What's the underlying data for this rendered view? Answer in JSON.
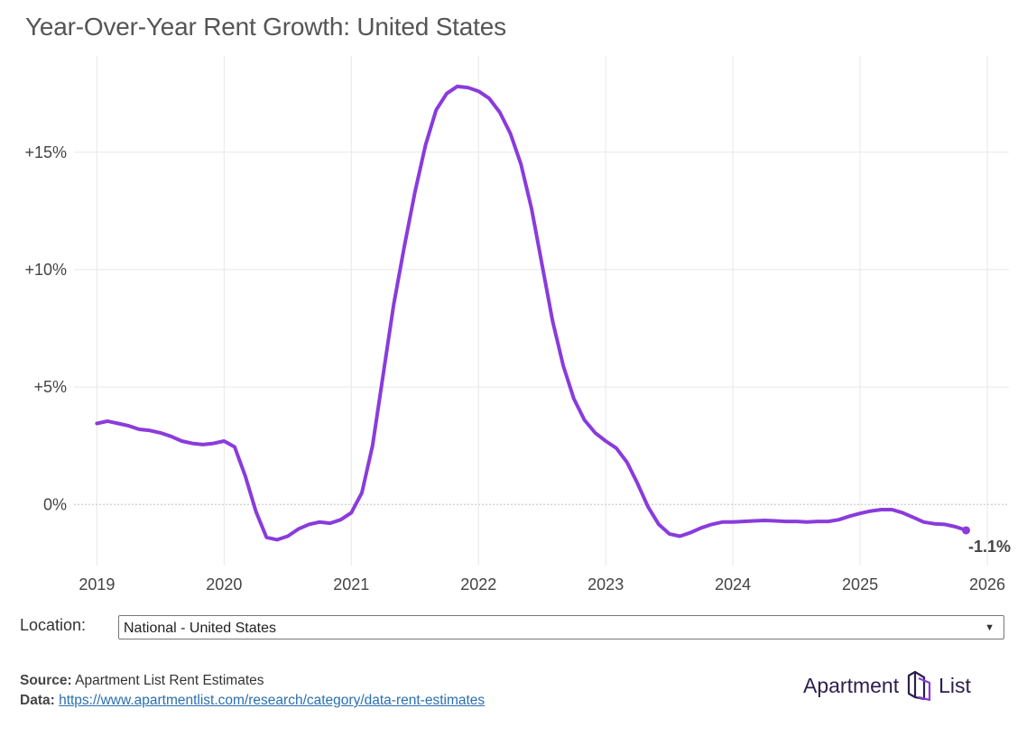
{
  "chart_data": {
    "type": "line",
    "title": "Year-Over-Year Rent Growth: United States",
    "xlabel": "",
    "ylabel": "",
    "x_ticks": [
      "2019",
      "2020",
      "2021",
      "2022",
      "2023",
      "2024",
      "2025",
      "2026"
    ],
    "y_ticks": [
      "0%",
      "+5%",
      "+10%",
      "+15%"
    ],
    "y_tick_values": [
      0,
      5,
      10,
      15
    ],
    "ylim": [
      -2.6,
      19.1
    ],
    "xlim": [
      2018.82,
      2026.17
    ],
    "grid": true,
    "line_color": "#8a3bdc",
    "series": [
      {
        "name": "National - United States",
        "x": [
          2019.0,
          2019.083,
          2019.167,
          2019.25,
          2019.333,
          2019.417,
          2019.5,
          2019.583,
          2019.667,
          2019.75,
          2019.833,
          2019.917,
          2020.0,
          2020.083,
          2020.167,
          2020.25,
          2020.333,
          2020.417,
          2020.5,
          2020.583,
          2020.667,
          2020.75,
          2020.833,
          2020.917,
          2021.0,
          2021.083,
          2021.167,
          2021.25,
          2021.333,
          2021.417,
          2021.5,
          2021.583,
          2021.667,
          2021.75,
          2021.833,
          2021.917,
          2022.0,
          2022.083,
          2022.167,
          2022.25,
          2022.333,
          2022.417,
          2022.5,
          2022.583,
          2022.667,
          2022.75,
          2022.833,
          2022.917,
          2023.0,
          2023.083,
          2023.167,
          2023.25,
          2023.333,
          2023.417,
          2023.5,
          2023.583,
          2023.667,
          2023.75,
          2023.833,
          2023.917,
          2024.0,
          2024.083,
          2024.167,
          2024.25,
          2024.333,
          2024.417,
          2024.5,
          2024.583,
          2024.667,
          2024.75,
          2024.833,
          2024.917,
          2025.0,
          2025.083,
          2025.167,
          2025.25,
          2025.333,
          2025.417,
          2025.5,
          2025.583,
          2025.667,
          2025.75,
          2025.833
        ],
        "values": [
          3.45,
          3.55,
          3.45,
          3.35,
          3.2,
          3.15,
          3.05,
          2.9,
          2.7,
          2.6,
          2.55,
          2.6,
          2.7,
          2.45,
          1.2,
          -0.3,
          -1.4,
          -1.5,
          -1.35,
          -1.05,
          -0.85,
          -0.75,
          -0.8,
          -0.65,
          -0.35,
          0.5,
          2.5,
          5.5,
          8.5,
          11.0,
          13.3,
          15.3,
          16.8,
          17.5,
          17.8,
          17.75,
          17.6,
          17.3,
          16.7,
          15.8,
          14.5,
          12.6,
          10.2,
          7.8,
          5.9,
          4.5,
          3.6,
          3.05,
          2.7,
          2.4,
          1.8,
          0.9,
          -0.1,
          -0.85,
          -1.25,
          -1.35,
          -1.2,
          -1.0,
          -0.85,
          -0.75,
          -0.75,
          -0.72,
          -0.7,
          -0.68,
          -0.7,
          -0.72,
          -0.72,
          -0.75,
          -0.72,
          -0.72,
          -0.65,
          -0.5,
          -0.38,
          -0.28,
          -0.22,
          -0.22,
          -0.35,
          -0.55,
          -0.75,
          -0.82,
          -0.85,
          -0.95,
          -1.1
        ]
      }
    ],
    "last_label": "-1.1%"
  },
  "location": {
    "label": "Location:",
    "selected": "National - United States"
  },
  "footer": {
    "source_label": "Source:",
    "source_text": "Apartment List Rent Estimates",
    "data_label": "Data:",
    "data_link": "https://www.apartmentlist.com/research/category/data-rent-estimates"
  },
  "brand": {
    "word1": "Apartment",
    "word2": "List"
  },
  "colors": {
    "accent": "#8a3bdc",
    "grid": "#e8e8e8",
    "zero_line": "#c4c4c4",
    "link": "#2a6fae",
    "brand": "#2b1f4e"
  }
}
